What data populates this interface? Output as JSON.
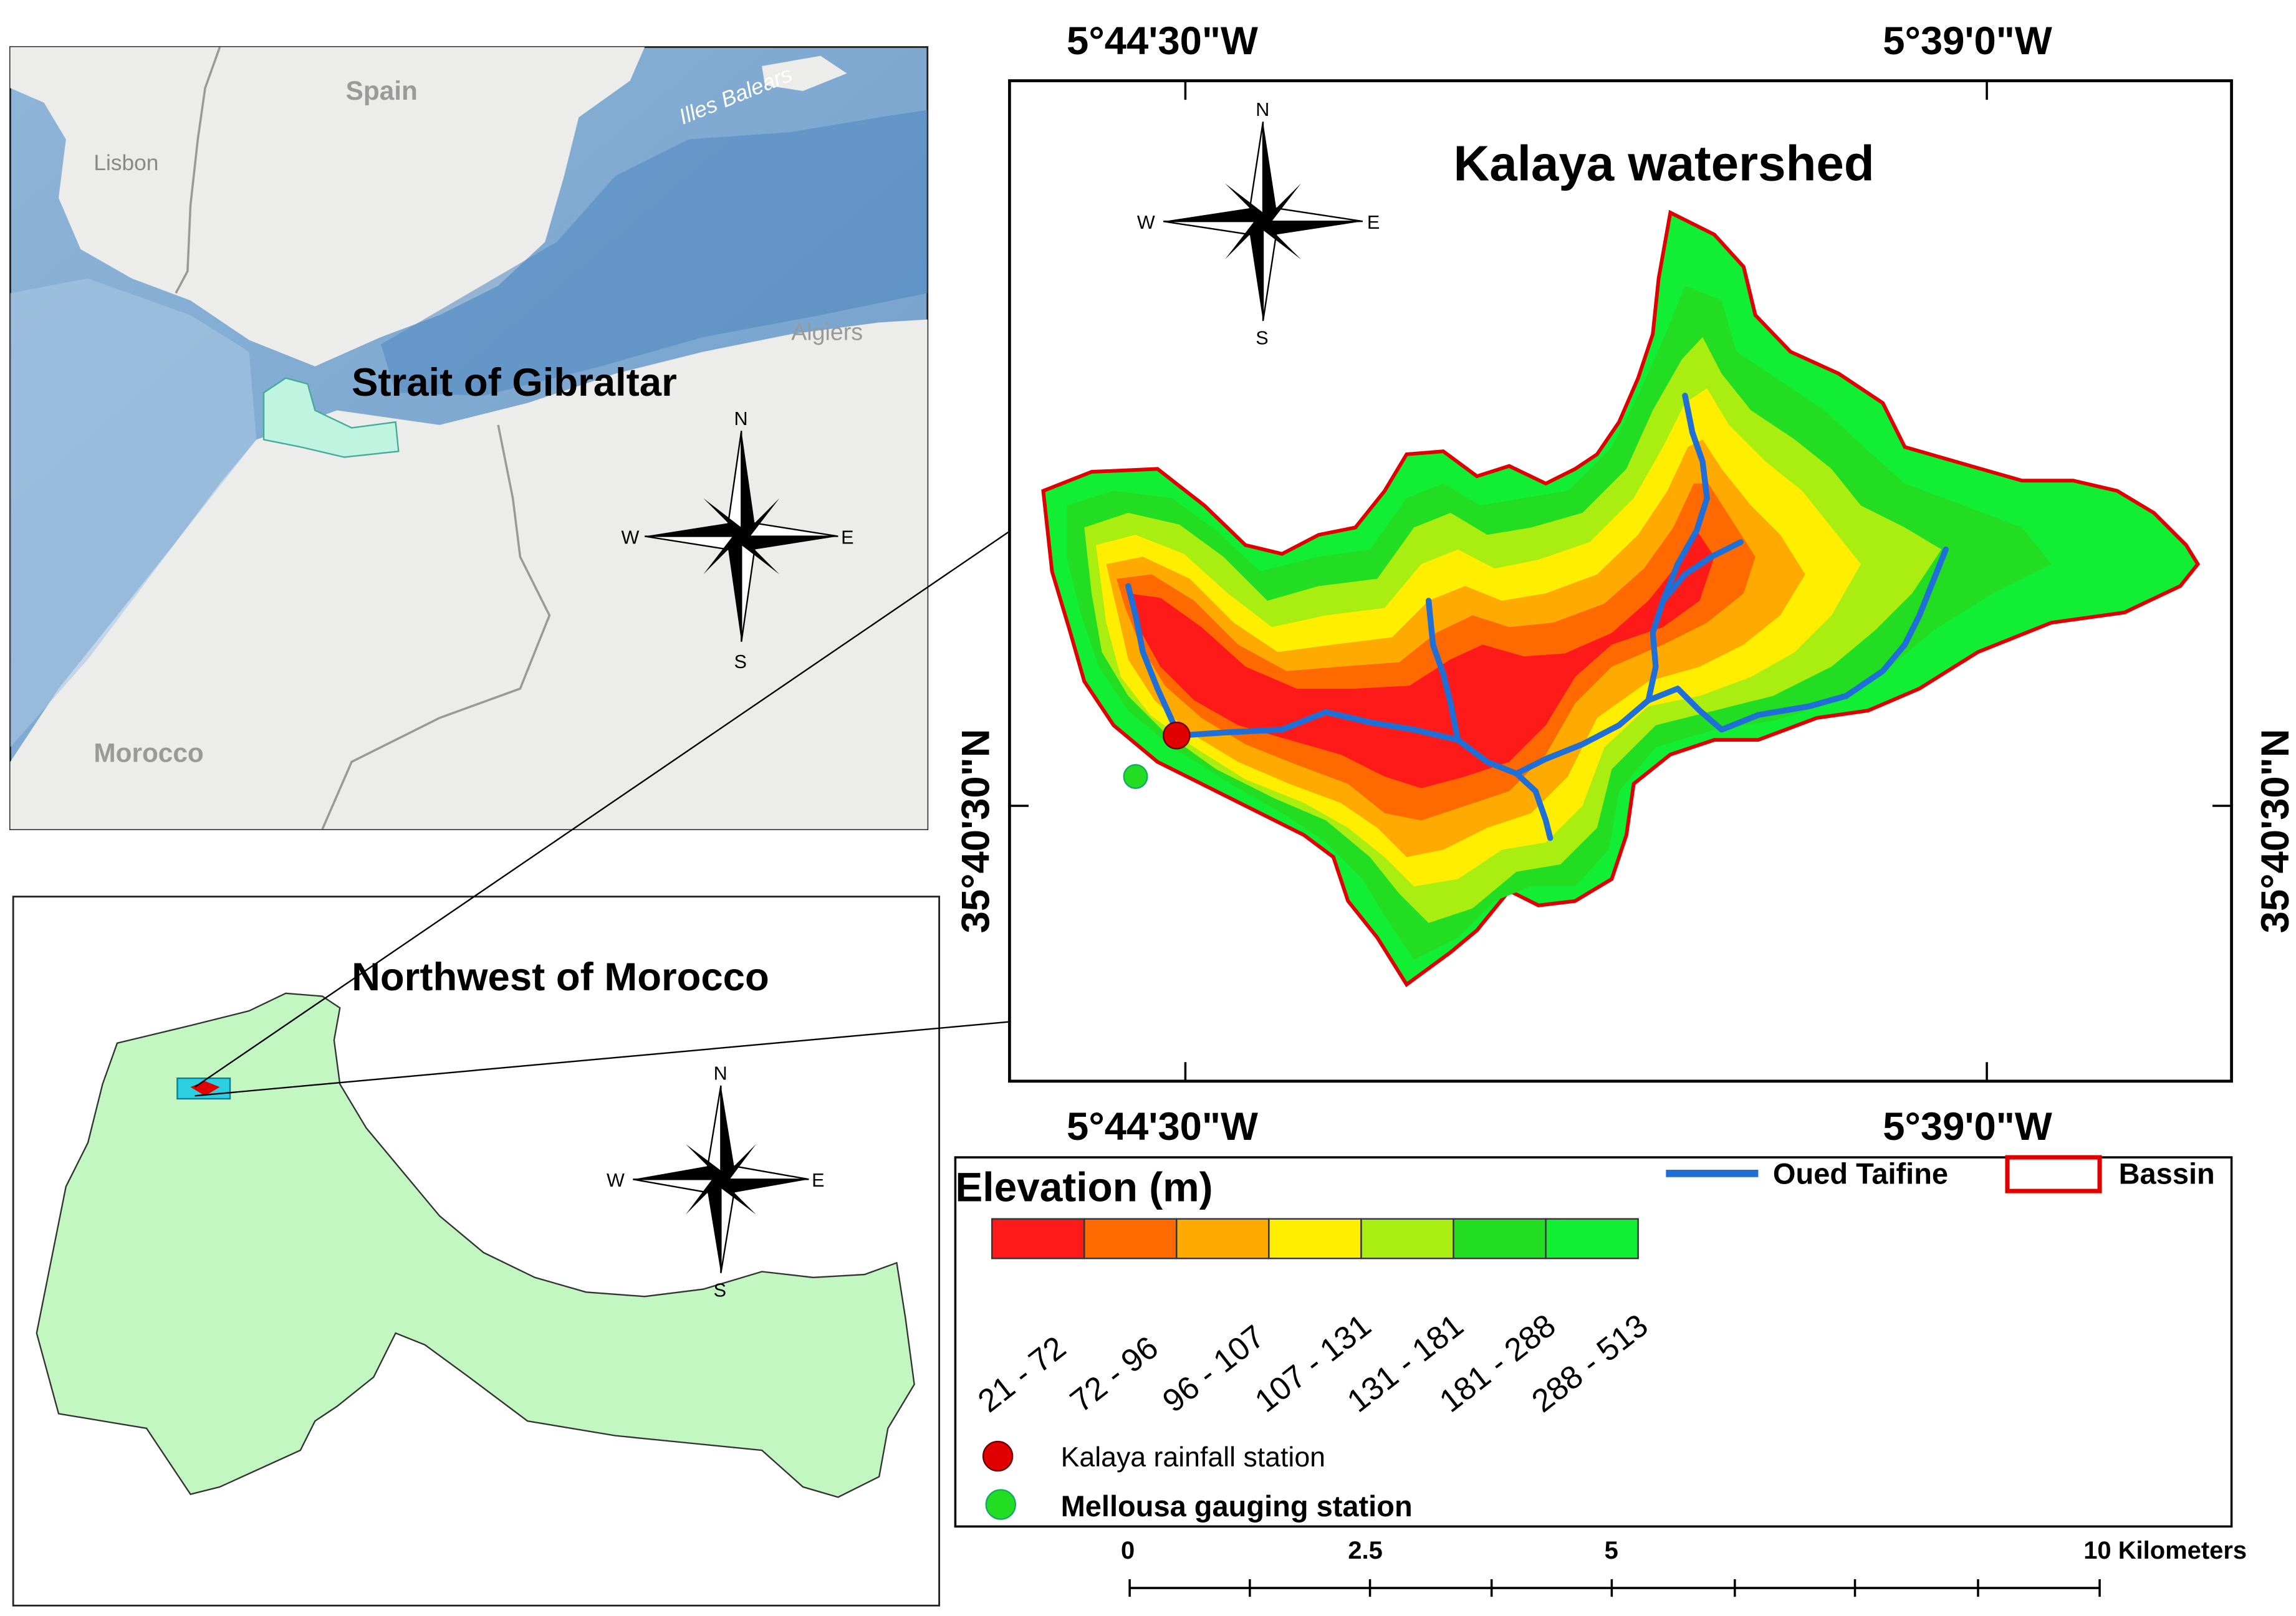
{
  "inset_top": {
    "labels": {
      "spain": "Spain",
      "illes_balears": "Illes Balears",
      "lisbon": "Lisbon",
      "algiers": "Algiers",
      "morocco": "Morocco",
      "strait": "Strait of Gibraltar"
    },
    "compass": {
      "n": "N",
      "s": "S",
      "e": "E",
      "w": "W"
    }
  },
  "inset_bottom": {
    "title": "Northwest of Morocco",
    "compass": {
      "n": "N",
      "s": "S",
      "e": "E",
      "w": "W"
    }
  },
  "main_map": {
    "title": "Kalaya watershed",
    "compass": {
      "n": "N",
      "s": "S",
      "e": "E",
      "w": "W"
    },
    "graticule": {
      "top_left": "5°44'30\"W",
      "top_right": "5°39'0\"W",
      "bottom_left": "5°44'30\"W",
      "bottom_right": "5°39'0\"W",
      "left": "35°40'30\"N",
      "right": "35°40'30\"N"
    }
  },
  "legend": {
    "elevation_title": "Elevation (m)",
    "classes": [
      {
        "label": "21 - 72",
        "color": "#ff1a1a"
      },
      {
        "label": "72 - 96",
        "color": "#ff6a00"
      },
      {
        "label": "96 - 107",
        "color": "#ffaa00"
      },
      {
        "label": "107 - 131",
        "color": "#ffee00"
      },
      {
        "label": "131 - 181",
        "color": "#aaee11"
      },
      {
        "label": "181 - 288",
        "color": "#22dd22"
      },
      {
        "label": "288 - 513",
        "color": "#11ee33"
      }
    ],
    "river_label": "Oued Taifine",
    "basin_label": "Bassin",
    "rain_station": "Kalaya rainfall station",
    "gauge_station": "Mellousa gauging station",
    "colors": {
      "river": "#1f6fd6",
      "basin": "#e00000",
      "rain": "#e00000",
      "gauge": "#22dd22"
    }
  },
  "scale_bar": {
    "ticks": [
      "0",
      "2.5",
      "5",
      "10 Kilometers"
    ]
  }
}
